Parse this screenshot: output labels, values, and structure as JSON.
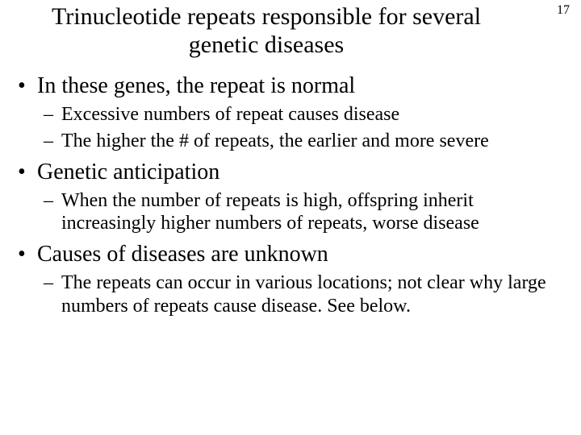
{
  "page_number": "17",
  "title": "Trinucleotide repeats responsible for several genetic diseases",
  "bullets": [
    {
      "text": "In these genes, the repeat is normal",
      "sub": [
        "Excessive numbers of repeat causes disease",
        "The higher the # of repeats, the earlier and more severe"
      ]
    },
    {
      "text": "Genetic anticipation",
      "sub": [
        "When the number of repeats is high, offspring inherit increasingly higher numbers of repeats, worse disease"
      ]
    },
    {
      "text": "Causes of diseases are unknown",
      "sub": [
        "The repeats can occur in various locations; not clear why large numbers of repeats cause disease.  See below."
      ]
    }
  ],
  "colors": {
    "background": "#ffffff",
    "text": "#000000"
  },
  "typography": {
    "family": "Times New Roman",
    "title_fontsize": 30,
    "l1_fontsize": 28,
    "l2_fontsize": 24,
    "page_number_fontsize": 16
  }
}
